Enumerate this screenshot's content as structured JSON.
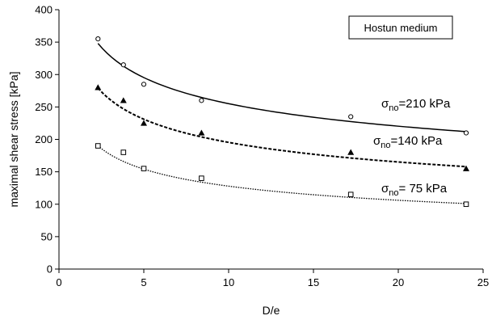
{
  "chart_data": {
    "type": "scatter",
    "xlabel": "D/e",
    "ylabel": "maximal shear stress [kPa]",
    "xlim": [
      0,
      25
    ],
    "ylim": [
      0,
      400
    ],
    "xticks": [
      0,
      5,
      10,
      15,
      20,
      25
    ],
    "yticks": [
      0,
      50,
      100,
      150,
      200,
      250,
      300,
      350,
      400
    ],
    "grid": false,
    "legend": {
      "text": "Hostun medium",
      "placement": "top-right"
    },
    "series": [
      {
        "label_main": "σ",
        "label_sub": "no",
        "label_rest": "=210 kPa",
        "marker": "circle",
        "line_style": "solid",
        "x": [
          2.3,
          3.8,
          5.0,
          8.4,
          17.2,
          24.0
        ],
        "y": [
          355,
          315,
          285,
          260,
          235,
          210
        ],
        "fit": {
          "x0": 2.3,
          "x1": 24.0,
          "y0": 348,
          "y1": 212
        }
      },
      {
        "label_main": "σ",
        "label_sub": "no",
        "label_rest": "=140 kPa",
        "marker": "triangle",
        "line_style": "dashed",
        "x": [
          2.3,
          3.8,
          5.0,
          8.4,
          17.2,
          24.0
        ],
        "y": [
          280,
          260,
          225,
          210,
          180,
          155
        ],
        "fit": {
          "x0": 2.3,
          "x1": 24.0,
          "y0": 279,
          "y1": 158
        }
      },
      {
        "label_main": "σ",
        "label_sub": "no",
        "label_rest": "= 75 kPa",
        "marker": "square",
        "line_style": "dotted",
        "x": [
          2.3,
          3.8,
          5.0,
          8.4,
          17.2,
          24.0
        ],
        "y": [
          190,
          180,
          155,
          140,
          115,
          100
        ],
        "fit": {
          "x0": 2.3,
          "x1": 24.0,
          "y0": 190,
          "y1": 101
        }
      }
    ]
  }
}
